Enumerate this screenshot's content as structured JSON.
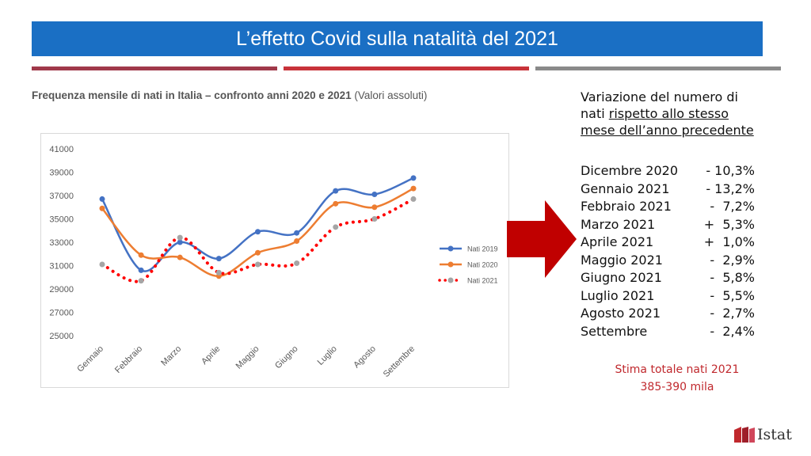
{
  "header": {
    "title": "L’effetto Covid sulla natalità del 2021"
  },
  "subtitle": {
    "bold": "Frequenza mensile di nati in Italia – confronto anni 2020 e 2021",
    "normal": "(Valori assoluti)"
  },
  "chart_data": {
    "type": "line",
    "categories": [
      "Gennaio",
      "Febbraio",
      "Marzo",
      "Aprile",
      "Maggio",
      "Giugno",
      "Luglio",
      "Agosto",
      "Settembre"
    ],
    "series": [
      {
        "name": "Nati 2019",
        "color": "#4472c4",
        "style": "solid",
        "values": [
          36700,
          30600,
          33000,
          31600,
          33900,
          33800,
          37400,
          37100,
          38500
        ]
      },
      {
        "name": "Nati 2020",
        "color": "#ed7d31",
        "style": "solid",
        "values": [
          35900,
          31900,
          31700,
          30100,
          32100,
          33100,
          36300,
          36000,
          37600
        ]
      },
      {
        "name": "Nati 2021",
        "color": "#ff0000",
        "marker_color": "#a5a5a5",
        "style": "dotted",
        "values": [
          31100,
          29700,
          33400,
          30400,
          31100,
          31200,
          34300,
          35000,
          36700
        ]
      }
    ],
    "yticks": [
      25000,
      27000,
      29000,
      31000,
      33000,
      35000,
      37000,
      39000,
      41000
    ],
    "ylim": [
      25000,
      41000
    ],
    "legend_position": "right",
    "grid": false
  },
  "panel": {
    "heading_line1": "Variazione del numero di",
    "heading_line2_plain": "nati ",
    "heading_line2_underlined": "rispetto allo stesso",
    "heading_line3_underlined": "mese dell’anno precedente",
    "variations": [
      {
        "month": "Dicembre 2020",
        "value": "- 10,3%"
      },
      {
        "month": "Gennaio 2021",
        "value": "- 13,2%"
      },
      {
        "month": "Febbraio 2021",
        "value": "-  7,2%"
      },
      {
        "month": "Marzo 2021",
        "value": "+  5,3%"
      },
      {
        "month": "Aprile 2021",
        "value": "+  1,0%"
      },
      {
        "month": "Maggio 2021",
        "value": "-  2,9%"
      },
      {
        "month": "Giugno 2021",
        "value": "-  5,8%"
      },
      {
        "month": "Luglio 2021",
        "value": "-  5,5%"
      },
      {
        "month": "Agosto 2021",
        "value": "-  2,7%"
      },
      {
        "month": "Settembre",
        "value": "-  2,4%"
      }
    ]
  },
  "estimate": {
    "line1": "Stima totale nati 2021",
    "line2": "385-390 mila"
  },
  "logo": {
    "text": "Istat"
  }
}
